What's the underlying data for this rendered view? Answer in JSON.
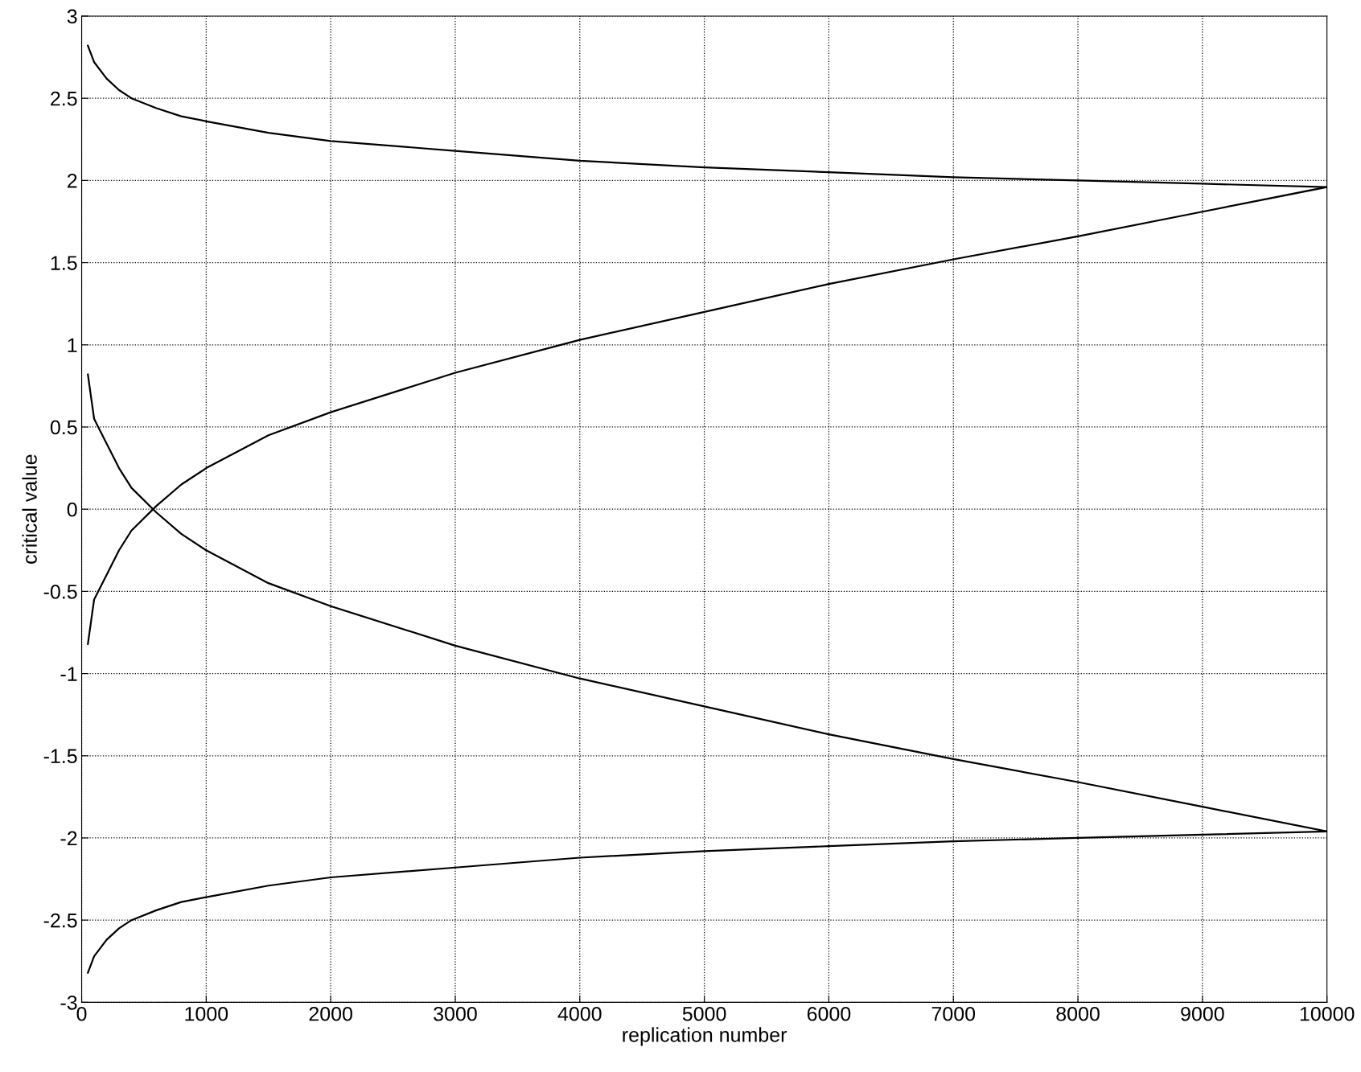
{
  "chart_data": {
    "type": "line",
    "xlabel": "replication number",
    "ylabel": "critical value",
    "xlim": [
      0,
      10000
    ],
    "ylim": [
      -3,
      3
    ],
    "xticks": [
      0,
      1000,
      2000,
      3000,
      4000,
      5000,
      6000,
      7000,
      8000,
      9000,
      10000
    ],
    "yticks": [
      -3,
      -2.5,
      -2,
      -1.5,
      -1,
      -0.5,
      0,
      0.5,
      1,
      1.5,
      2,
      2.5,
      3
    ],
    "grid": true,
    "marker": "none",
    "line_style": "solid",
    "x": [
      50,
      100,
      200,
      300,
      400,
      600,
      800,
      1000,
      1500,
      2000,
      3000,
      4000,
      5000,
      6000,
      7000,
      8000,
      9000,
      10000
    ],
    "series": [
      {
        "color": "#000000",
        "values": [
          2.82,
          2.72,
          2.62,
          2.55,
          2.5,
          2.44,
          2.39,
          2.36,
          2.29,
          2.24,
          2.18,
          2.12,
          2.08,
          2.05,
          2.02,
          2.0,
          1.98,
          1.96
        ]
      },
      {
        "color": "#000000",
        "values": [
          -0.82,
          -0.55,
          -0.4,
          -0.25,
          -0.13,
          0.02,
          0.15,
          0.25,
          0.45,
          0.59,
          0.83,
          1.03,
          1.2,
          1.37,
          1.52,
          1.66,
          1.81,
          1.96
        ]
      },
      {
        "color": "#000000",
        "values": [
          0.82,
          0.55,
          0.4,
          0.25,
          0.13,
          -0.02,
          -0.15,
          -0.25,
          -0.45,
          -0.59,
          -0.83,
          -1.03,
          -1.2,
          -1.37,
          -1.52,
          -1.66,
          -1.81,
          -1.96
        ]
      },
      {
        "color": "#000000",
        "values": [
          -2.82,
          -2.72,
          -2.62,
          -2.55,
          -2.5,
          -2.44,
          -2.39,
          -2.36,
          -2.29,
          -2.24,
          -2.18,
          -2.12,
          -2.08,
          -2.05,
          -2.02,
          -2.0,
          -1.98,
          -1.96
        ]
      }
    ]
  }
}
